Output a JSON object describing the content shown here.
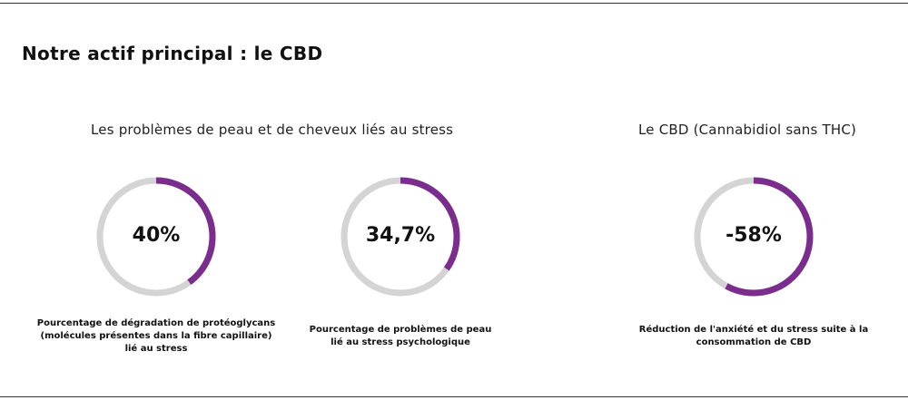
{
  "title": "Notre actif principal : le CBD",
  "groups": [
    {
      "heading": "Les problèmes de peau et de cheveux liés au stress"
    },
    {
      "heading": "Le CBD (Cannabidiol sans THC)"
    }
  ],
  "stats": [
    {
      "value": "40%",
      "fill_fraction": 0.4,
      "caption_lines": [
        "Pourcentage de dégradation de protéoglycans",
        "(molécules présentes dans la fibre capillaire)",
        "lié au stress"
      ]
    },
    {
      "value": "34,7%",
      "fill_fraction": 0.347,
      "caption_lines": [
        "Pourcentage de problèmes de peau",
        "lié au stress psychologique"
      ]
    },
    {
      "value": "-58%",
      "fill_fraction": 0.58,
      "caption_lines": [
        "Réduction de l'anxiété et du stress suite à la",
        "consommation de CBD"
      ]
    }
  ],
  "colors": {
    "accent": "#7b2d8e",
    "track": "#d4d4d4",
    "text": "#111111",
    "rule": "#333333"
  }
}
